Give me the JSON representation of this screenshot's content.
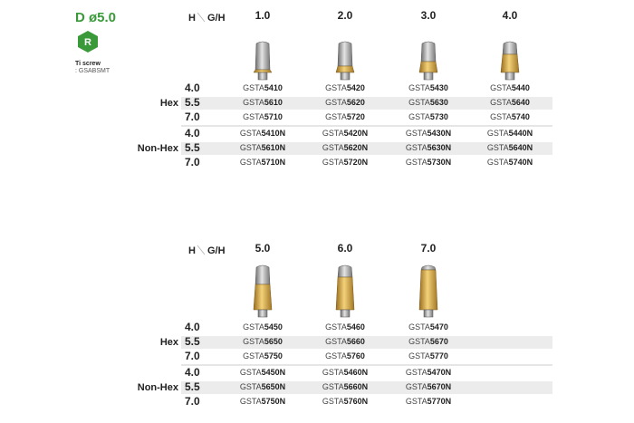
{
  "header": {
    "title": "D ø5.0",
    "badge": "R",
    "screw_label": "Ti screw",
    "screw_code": ": GSABSMT"
  },
  "tables": [
    {
      "h_label": "H",
      "gh_label": "G/H",
      "columns": [
        "1.0",
        "2.0",
        "3.0",
        "4.0"
      ],
      "groups": [
        {
          "name": "Hex",
          "rows": [
            {
              "h": "4.0",
              "codes": [
                [
                  "GSTA",
                  "5410"
                ],
                [
                  "GSTA",
                  "5420"
                ],
                [
                  "GSTA",
                  "5430"
                ],
                [
                  "GSTA",
                  "5440"
                ]
              ]
            },
            {
              "h": "5.5",
              "codes": [
                [
                  "GSTA",
                  "5610"
                ],
                [
                  "GSTA",
                  "5620"
                ],
                [
                  "GSTA",
                  "5630"
                ],
                [
                  "GSTA",
                  "5640"
                ]
              ]
            },
            {
              "h": "7.0",
              "codes": [
                [
                  "GSTA",
                  "5710"
                ],
                [
                  "GSTA",
                  "5720"
                ],
                [
                  "GSTA",
                  "5730"
                ],
                [
                  "GSTA",
                  "5740"
                ]
              ]
            }
          ]
        },
        {
          "name": "Non-Hex",
          "rows": [
            {
              "h": "4.0",
              "codes": [
                [
                  "GSTA",
                  "5410N"
                ],
                [
                  "GSTA",
                  "5420N"
                ],
                [
                  "GSTA",
                  "5430N"
                ],
                [
                  "GSTA",
                  "5440N"
                ]
              ]
            },
            {
              "h": "5.5",
              "codes": [
                [
                  "GSTA",
                  "5610N"
                ],
                [
                  "GSTA",
                  "5620N"
                ],
                [
                  "GSTA",
                  "5630N"
                ],
                [
                  "GSTA",
                  "5640N"
                ]
              ]
            },
            {
              "h": "7.0",
              "codes": [
                [
                  "GSTA",
                  "5710N"
                ],
                [
                  "GSTA",
                  "5720N"
                ],
                [
                  "GSTA",
                  "5730N"
                ],
                [
                  "GSTA",
                  "5740N"
                ]
              ]
            }
          ]
        }
      ]
    },
    {
      "h_label": "H",
      "gh_label": "G/H",
      "columns": [
        "5.0",
        "6.0",
        "7.0"
      ],
      "groups": [
        {
          "name": "Hex",
          "rows": [
            {
              "h": "4.0",
              "codes": [
                [
                  "GSTA",
                  "5450"
                ],
                [
                  "GSTA",
                  "5460"
                ],
                [
                  "GSTA",
                  "5470"
                ]
              ]
            },
            {
              "h": "5.5",
              "codes": [
                [
                  "GSTA",
                  "5650"
                ],
                [
                  "GSTA",
                  "5660"
                ],
                [
                  "GSTA",
                  "5670"
                ]
              ]
            },
            {
              "h": "7.0",
              "codes": [
                [
                  "GSTA",
                  "5750"
                ],
                [
                  "GSTA",
                  "5760"
                ],
                [
                  "GSTA",
                  "5770"
                ]
              ]
            }
          ]
        },
        {
          "name": "Non-Hex",
          "rows": [
            {
              "h": "4.0",
              "codes": [
                [
                  "GSTA",
                  "5450N"
                ],
                [
                  "GSTA",
                  "5460N"
                ],
                [
                  "GSTA",
                  "5470N"
                ]
              ]
            },
            {
              "h": "5.5",
              "codes": [
                [
                  "GSTA",
                  "5650N"
                ],
                [
                  "GSTA",
                  "5660N"
                ],
                [
                  "GSTA",
                  "5670N"
                ]
              ]
            },
            {
              "h": "7.0",
              "codes": [
                [
                  "GSTA",
                  "5750N"
                ],
                [
                  "GSTA",
                  "5760N"
                ],
                [
                  "GSTA",
                  "5770N"
                ]
              ]
            }
          ]
        }
      ]
    }
  ]
}
